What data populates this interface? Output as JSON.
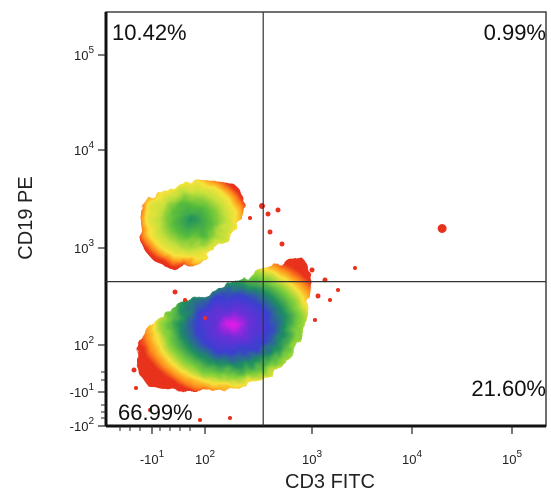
{
  "chart_data": {
    "type": "scatter",
    "subtype": "flow-cytometry density plot with quadrant gates",
    "xlabel": "CD3 FITC",
    "ylabel": "CD19 PE",
    "x_ticks": [
      {
        "value": -10,
        "base": "-10",
        "exp": "1"
      },
      {
        "value": 100,
        "base": "10",
        "exp": "2"
      },
      {
        "value": 1000,
        "base": "10",
        "exp": "3"
      },
      {
        "value": 10000,
        "base": "10",
        "exp": "4"
      },
      {
        "value": 100000,
        "base": "10",
        "exp": "5"
      }
    ],
    "y_ticks": [
      {
        "value": -100,
        "base": "-10",
        "exp": "2"
      },
      {
        "value": -10,
        "base": "-10",
        "exp": "1"
      },
      {
        "value": 100,
        "base": "10",
        "exp": "2"
      },
      {
        "value": 1000,
        "base": "10",
        "exp": "3"
      },
      {
        "value": 10000,
        "base": "10",
        "exp": "4"
      },
      {
        "value": 100000,
        "base": "10",
        "exp": "5"
      }
    ],
    "x_scale": "biexponential",
    "y_scale": "biexponential",
    "gate": {
      "x": 350,
      "y": 450
    },
    "quadrants": [
      {
        "name": "upper-left",
        "label": "10.42%"
      },
      {
        "name": "upper-right",
        "label": "0.99%"
      },
      {
        "name": "lower-left",
        "label": "66.99%"
      },
      {
        "name": "lower-right",
        "label": "21.60%"
      }
    ],
    "populations": [
      {
        "name": "CD3- CD19+",
        "x_center": 90,
        "y_center": 1800,
        "density": "medium"
      },
      {
        "name": "CD3+ CD19-",
        "x_center": 250,
        "y_center": 100,
        "density": "high"
      }
    ],
    "outlier_point": {
      "x": 20000,
      "y": 2000
    },
    "density_colors": [
      "#e8301c",
      "#ff8c1a",
      "#f7e23a",
      "#7ccf3a",
      "#1f8f5f",
      "#3b3fd0",
      "#6a2fd8",
      "#e81ae8"
    ]
  }
}
